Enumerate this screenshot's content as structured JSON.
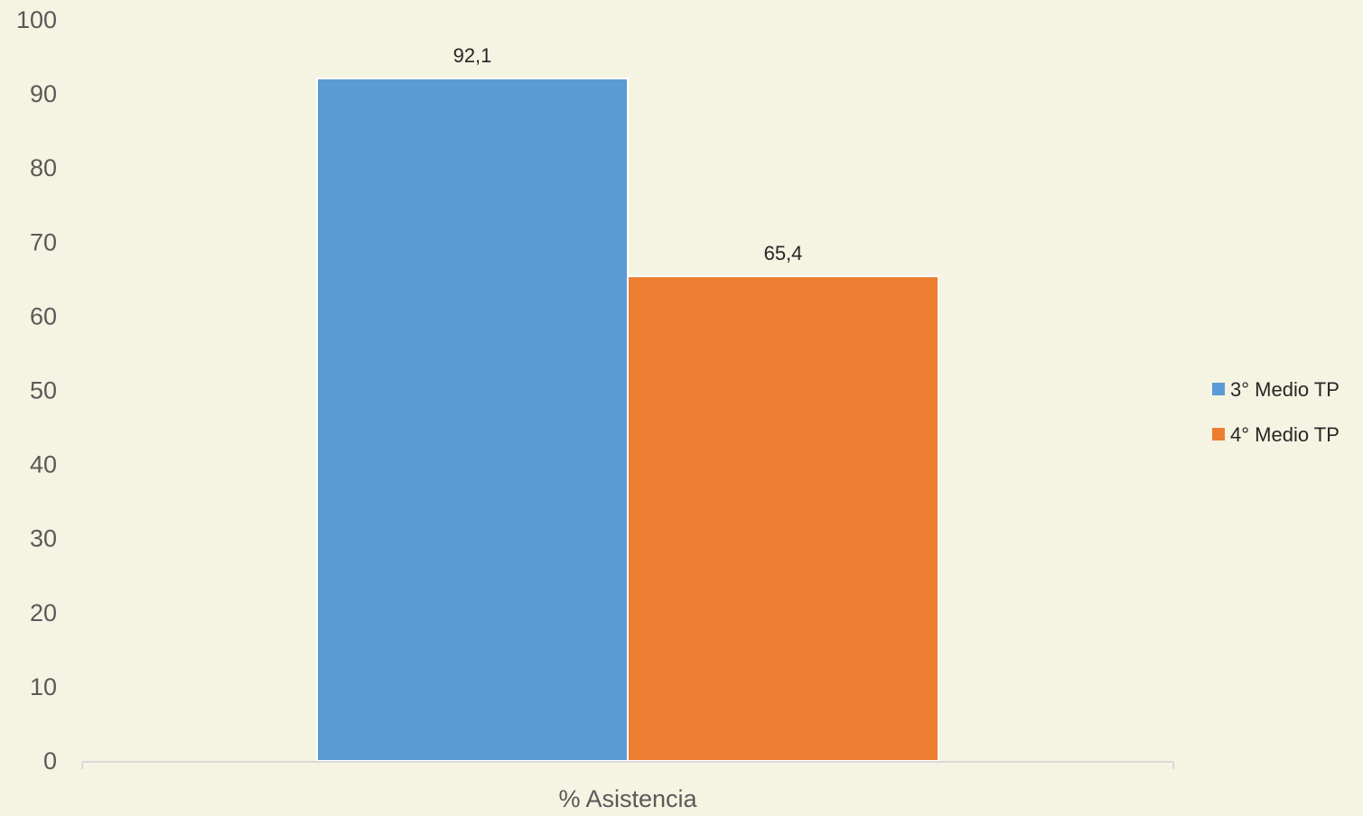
{
  "chart_data": {
    "type": "bar",
    "title": "",
    "xlabel": "",
    "ylabel": "",
    "categories": [
      "% Asistencia"
    ],
    "series": [
      {
        "name": "3° Medio TP",
        "values": [
          92.1
        ],
        "color": "#5b9bd5",
        "label": "92,1"
      },
      {
        "name": "4° Medio TP",
        "values": [
          65.4
        ],
        "color": "#ed7d31",
        "label": "65,4"
      }
    ],
    "ylim": [
      0,
      100
    ],
    "yticks": [
      "0",
      "10",
      "20",
      "30",
      "40",
      "50",
      "60",
      "70",
      "80",
      "90",
      "100"
    ],
    "grid": false,
    "legend": "right",
    "background": "#f5f3e2",
    "axis_color": "#d9d9d9"
  }
}
